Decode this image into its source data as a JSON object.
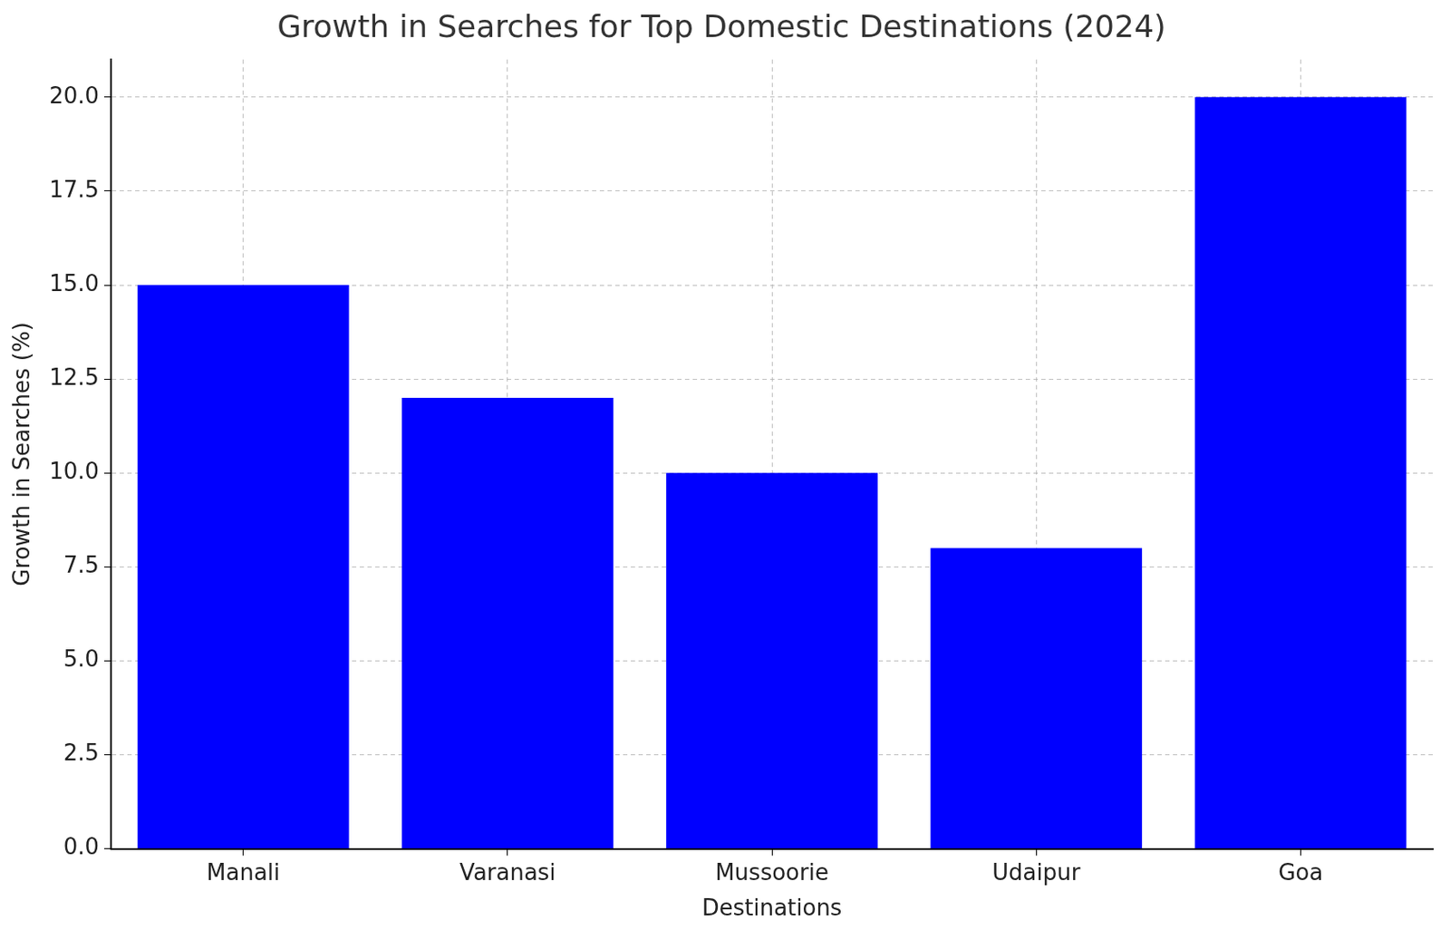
{
  "chart_data": {
    "type": "bar",
    "title": "Growth in Searches for Top Domestic Destinations (2024)",
    "x_label": "Destinations",
    "y_label": "Growth in Searches (%)",
    "categories": [
      "Manali",
      "Varanasi",
      "Mussoorie",
      "Udaipur",
      "Goa"
    ],
    "values": [
      15,
      12,
      10,
      8,
      20
    ],
    "color": "#0000ff",
    "ylim": [
      0,
      21
    ],
    "yticks": [
      {
        "value": 0,
        "label": "0.0"
      },
      2.5,
      {
        "value": 5,
        "label": "5.0"
      },
      7.5,
      {
        "value": 10,
        "label": "10.0"
      },
      12.5,
      {
        "value": 15,
        "label": "15.0"
      },
      17.5,
      {
        "value": 20,
        "label": "20.0"
      }
    ],
    "grid": true
  }
}
